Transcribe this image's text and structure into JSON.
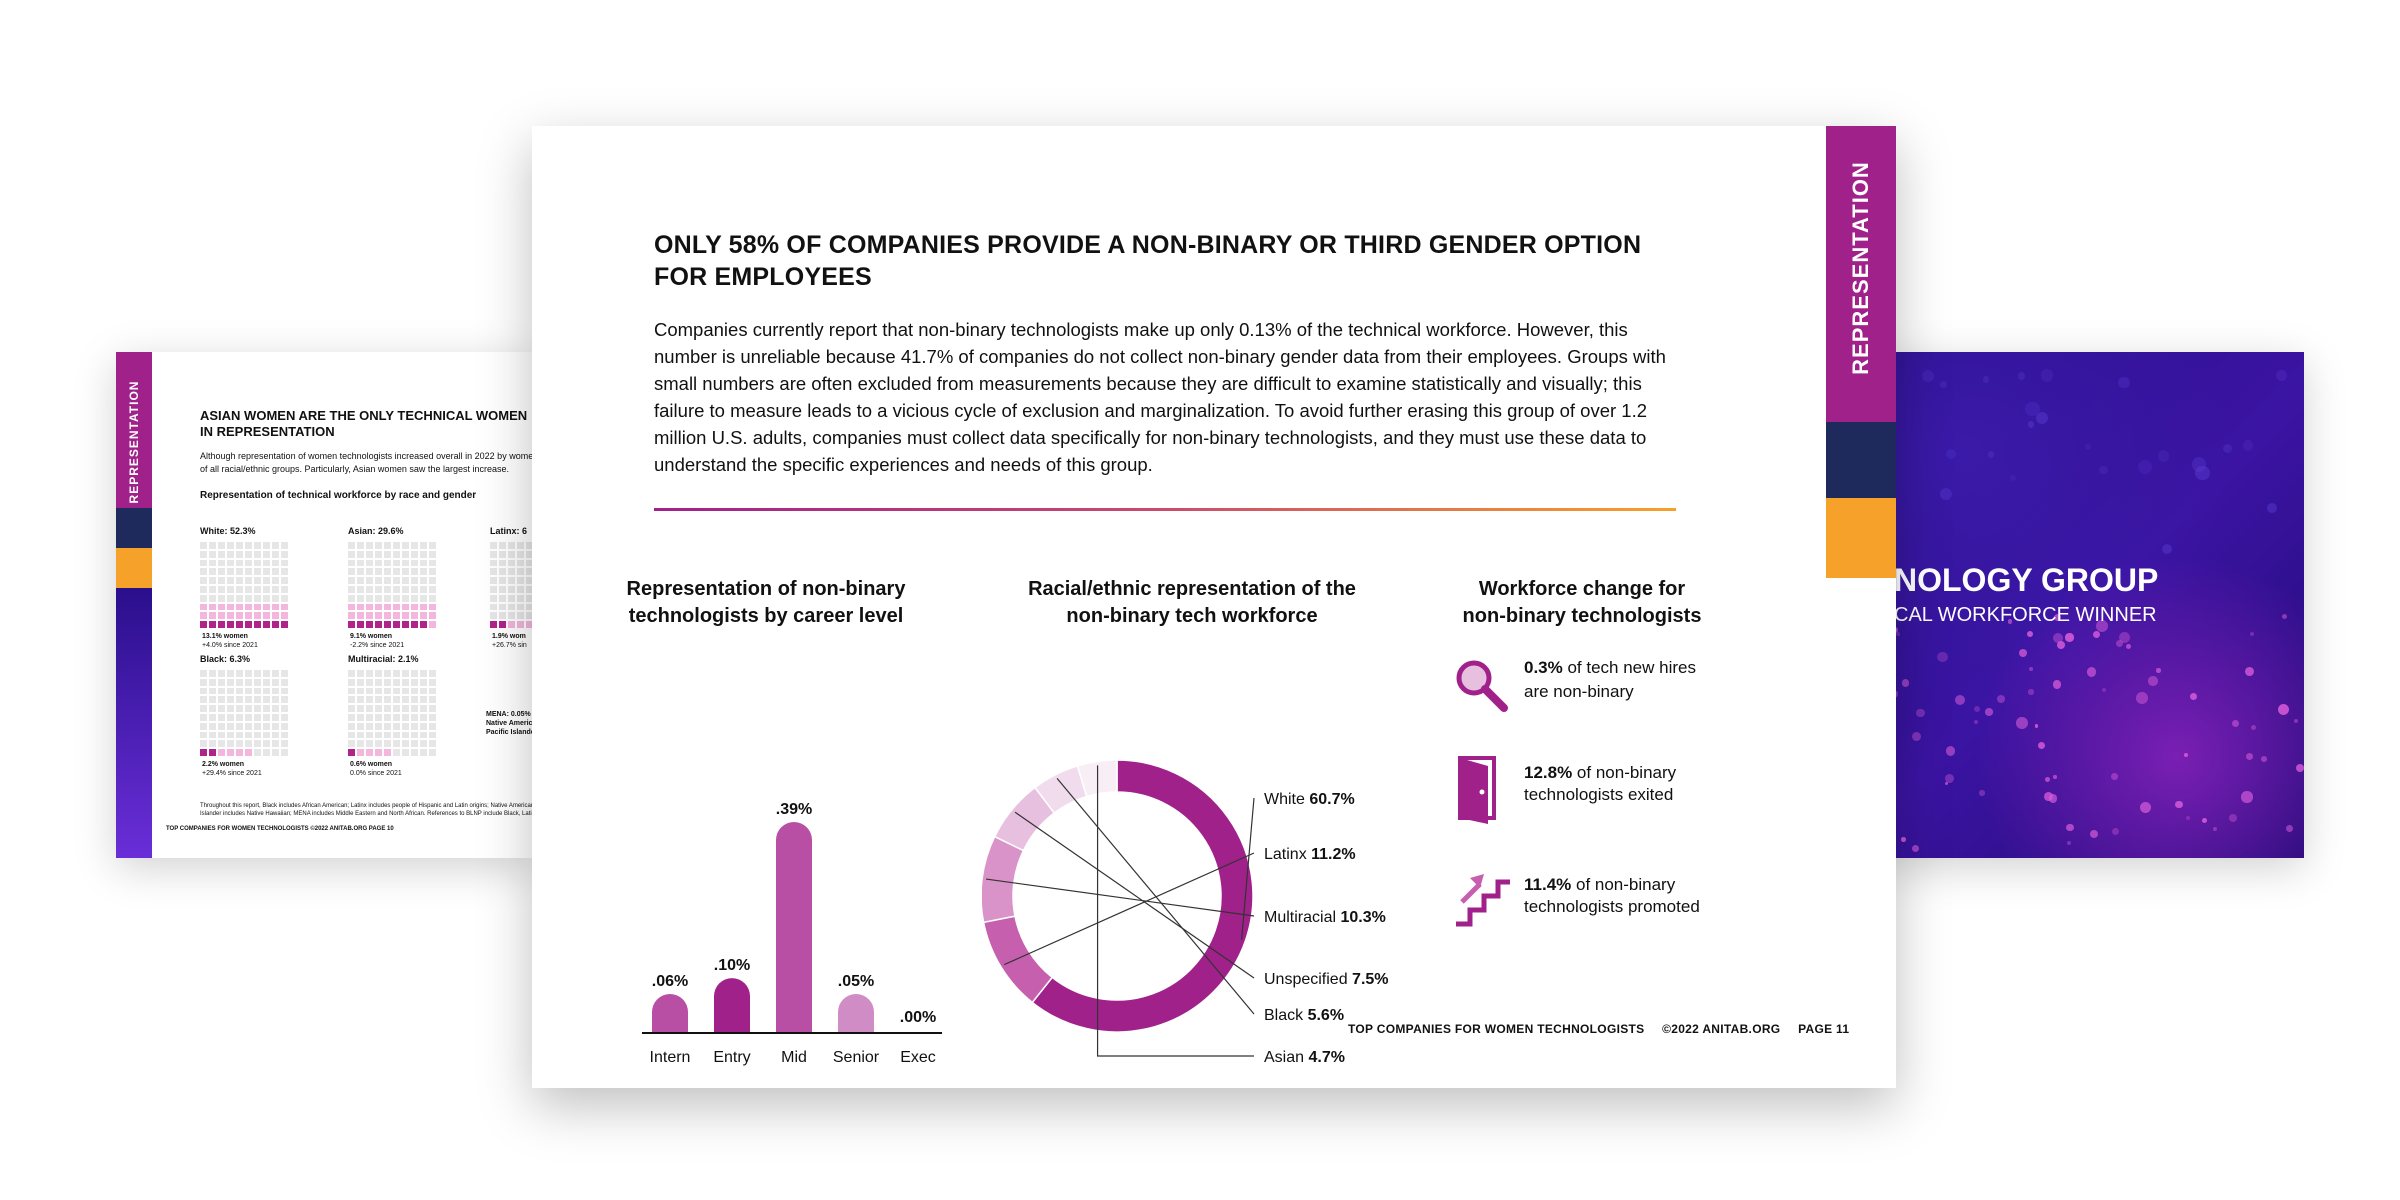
{
  "colors": {
    "magenta": "#a0218a",
    "navy": "#1f2a5c",
    "orange": "#f6a12a",
    "pink": "#f3b6dc"
  },
  "left_page": {
    "tab_label": "REPRESENTATION",
    "title": "ASIAN WOMEN ARE THE ONLY TECHNICAL WOMEN IN REPRESENTATION",
    "paragraph": "Although representation of women technologists increased overall in 2022 by women of all racial/ethnic groups. Particularly, Asian women saw the largest increase.",
    "subtitle": "Representation of technical workforce by race and gender",
    "groups": [
      {
        "label": "White: 52.3%",
        "note1": "13.1% women",
        "note2": "+4.0% since 2021",
        "women_cells": 10
      },
      {
        "label": "Asian: 29.6%",
        "note1": "9.1% women",
        "note2": "-2.2% since 2021",
        "women_cells": 9
      },
      {
        "label": "Latinx: 6",
        "note1": "1.9% wom",
        "note2": "+26.7% sin",
        "women_cells": 2
      },
      {
        "label": "Black: 6.3%",
        "note1": "2.2% women",
        "note2": "+29.4% since 2021",
        "women_cells": 2
      },
      {
        "label": "Multiracial: 2.1%",
        "note1": "0.6% women",
        "note2": "0.0% since 2021",
        "women_cells": 1
      }
    ],
    "mena_note": "MENA: 0.05% • Native America • Pacific Islande",
    "fine_print": "Throughout this report, Black includes African American; Latinx includes people of Hispanic and Latin origins; Native American Islander includes Native Hawaiian; MENA includes Middle Eastern and North African. References to BLNP include Black, Latin",
    "footer": "TOP COMPANIES FOR WOMEN TECHNOLOGISTS     ©2022 ANITAB.ORG     PAGE 10"
  },
  "right_page": {
    "title": "NOLOGY GROUP",
    "subtitle": "CAL WORKFORCE WINNER"
  },
  "main_page": {
    "tab_label": "REPRESENTATION",
    "title": "ONLY 58% OF COMPANIES PROVIDE A NON-BINARY OR THIRD GENDER OPTION FOR EMPLOYEES",
    "body": "Companies currently report that non-binary technologists make up only 0.13% of the technical workforce. However, this number is unreliable because 41.7% of companies do not collect non-binary gender data from their employees. Groups with small numbers are often excluded from measurements because they are difficult to examine statistically and visually; this failure to measure leads to a vicious cycle of exclusion and marginalization. To avoid further erasing this group of over 1.2 million U.S. adults, companies must collect data specifically for non-binary technologists, and they must use these data to understand the specific experiences and needs of this group.",
    "footer": {
      "publication": "TOP COMPANIES FOR WOMEN TECHNOLOGISTS",
      "copyright": "©2022 ANITAB.ORG",
      "page": "PAGE 11"
    },
    "workforce": {
      "title_line1": "Workforce change for",
      "title_line2": "non-binary technologists",
      "items": [
        {
          "icon": "magnifier-icon",
          "value": "0.3%",
          "text1": " of tech new hires",
          "text2": "are non-binary"
        },
        {
          "icon": "door-exit-icon",
          "value": "12.8%",
          "text1": " of non-binary",
          "text2": "technologists exited"
        },
        {
          "icon": "stairs-up-icon",
          "value": "11.4%",
          "text1": " of non-binary",
          "text2": "technologists promoted"
        }
      ]
    }
  },
  "chart_data": [
    {
      "type": "bar",
      "title": "Representation of non-binary technologists by career level",
      "title_line1": "Representation of non-binary",
      "title_line2": "technologists by career level",
      "categories": [
        "Intern",
        "Entry",
        "Mid",
        "Senior",
        "Exec"
      ],
      "values": [
        0.06,
        0.1,
        0.39,
        0.05,
        0.0
      ],
      "value_labels": [
        ".06%",
        ".10%",
        ".39%",
        ".05%",
        ".00%"
      ],
      "colors": [
        "#b94fa5",
        "#a0218a",
        "#b94fa5",
        "#d08cc4",
        "#d08cc4"
      ],
      "ylim": [
        0,
        0.39
      ],
      "grid": false
    },
    {
      "type": "pie",
      "title": "Racial/ethnic representation of the non-binary tech workforce",
      "title_line1": "Racial/ethnic representation of the",
      "title_line2": "non-binary tech workforce",
      "donut": true,
      "labels": [
        "White",
        "Latinx",
        "Multiracial",
        "Unspecified",
        "Black",
        "Asian"
      ],
      "values": [
        60.7,
        11.2,
        10.3,
        7.5,
        5.6,
        4.7
      ],
      "value_labels": [
        "60.7%",
        "11.2%",
        "10.3%",
        "7.5%",
        "5.6%",
        "4.7%"
      ],
      "colors": [
        "#a0218a",
        "#c660ae",
        "#d993c9",
        "#e7bfdf",
        "#f1dcee",
        "#f8eef6"
      ]
    }
  ]
}
